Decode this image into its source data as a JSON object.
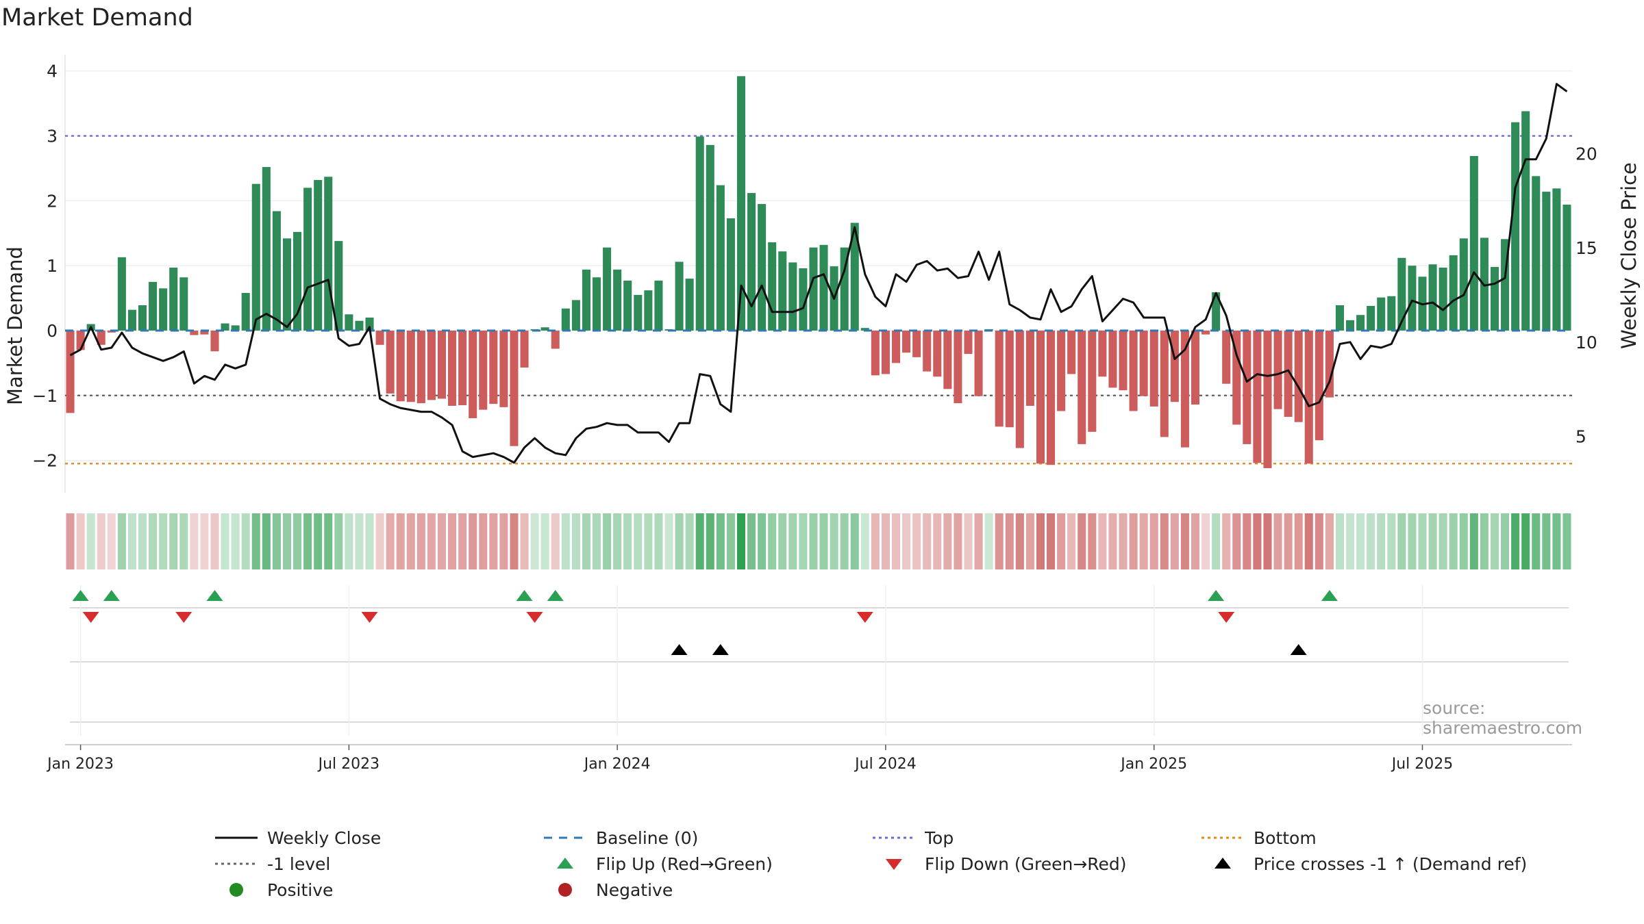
{
  "chart_data": {
    "type": "bar",
    "title": "Market Demand",
    "ylabel_left": "Market Demand",
    "ylabel_right": "Weekly Close Price",
    "source": "source: sharemaestro.com",
    "ylim_left": [
      -2.5,
      4.25
    ],
    "ylim_right": [
      2.0,
      25.25
    ],
    "left_ticks": [
      "−2",
      "−1",
      "0",
      "1",
      "2",
      "3",
      "4"
    ],
    "left_tick_values": [
      -2,
      -1,
      0,
      1,
      2,
      3,
      4
    ],
    "right_ticks": [
      "5",
      "10",
      "15",
      "20"
    ],
    "right_tick_values": [
      5,
      10,
      15,
      20
    ],
    "x_start": "2022-12-26",
    "x_ticks": [
      {
        "label": "Jan 2023",
        "week": 1
      },
      {
        "label": "Jul 2023",
        "week": 27
      },
      {
        "label": "Jan 2024",
        "week": 53
      },
      {
        "label": "Jul 2024",
        "week": 79
      },
      {
        "label": "Jan 2025",
        "week": 105
      },
      {
        "label": "Jul 2025",
        "week": 131
      }
    ],
    "reference_lines": [
      {
        "name": "Top",
        "value": 3,
        "color": "#6b6bd6",
        "dash": "4,5"
      },
      {
        "name": "-1 level",
        "value": -1,
        "color": "#666666",
        "dash": "4,5"
      },
      {
        "name": "Bottom",
        "value": -2.05,
        "color": "#e08a1e",
        "dash": "4,5"
      }
    ],
    "demand": [
      -1.27,
      -0.3,
      0.1,
      -0.22,
      -0.03,
      1.13,
      0.32,
      0.39,
      0.75,
      0.65,
      0.97,
      0.82,
      -0.07,
      -0.06,
      -0.32,
      0.11,
      0.08,
      0.58,
      2.26,
      2.52,
      1.84,
      1.42,
      1.52,
      2.2,
      2.32,
      2.37,
      1.38,
      0.25,
      0.15,
      0.2,
      -0.22,
      -0.97,
      -1.09,
      -1.1,
      -1.12,
      -1.07,
      -1.05,
      -1.16,
      -1.15,
      -1.35,
      -1.22,
      -1.13,
      -1.18,
      -1.78,
      -0.57,
      0.02,
      0.05,
      -0.28,
      0.34,
      0.47,
      0.94,
      0.82,
      1.28,
      0.94,
      0.77,
      0.55,
      0.62,
      0.77,
      0.02,
      1.06,
      0.8,
      2.99,
      2.86,
      2.24,
      1.73,
      3.92,
      2.12,
      1.95,
      1.36,
      1.22,
      1.05,
      0.96,
      1.28,
      1.32,
      0.99,
      1.28,
      1.66,
      0.04,
      -0.69,
      -0.67,
      -0.5,
      -0.34,
      -0.41,
      -0.63,
      -0.71,
      -0.9,
      -1.12,
      -0.36,
      -1.01,
      0.02,
      -1.48,
      -1.49,
      -1.81,
      -1.16,
      -2.05,
      -2.07,
      -1.24,
      -0.67,
      -1.75,
      -1.56,
      -0.71,
      -0.88,
      -0.92,
      -1.24,
      -1.01,
      -1.17,
      -1.64,
      -1.1,
      -1.8,
      -1.14,
      -0.06,
      0.59,
      -0.82,
      -1.45,
      -1.75,
      -2.04,
      -2.12,
      -1.21,
      -1.33,
      -1.41,
      -2.05,
      -1.69,
      -1.03,
      0.39,
      0.16,
      0.24,
      0.38,
      0.51,
      0.53,
      1.12,
      1.0,
      0.83,
      1.02,
      0.97,
      1.16,
      1.42,
      2.69,
      1.43,
      0.98,
      1.41,
      3.21,
      3.38,
      2.38,
      2.14,
      2.19,
      1.94
    ],
    "close": [
      9.3,
      9.6,
      10.8,
      9.6,
      9.7,
      10.5,
      9.7,
      9.4,
      9.2,
      9.0,
      9.2,
      9.5,
      7.8,
      8.2,
      8.0,
      8.8,
      8.6,
      8.8,
      11.2,
      11.5,
      11.2,
      10.8,
      11.5,
      12.9,
      13.1,
      13.3,
      10.2,
      9.8,
      9.9,
      10.8,
      7.0,
      6.7,
      6.5,
      6.4,
      6.3,
      6.3,
      6.0,
      5.6,
      4.2,
      3.9,
      4.0,
      4.1,
      3.9,
      3.6,
      4.4,
      4.9,
      4.4,
      4.1,
      4.0,
      4.9,
      5.4,
      5.5,
      5.7,
      5.6,
      5.6,
      5.2,
      5.2,
      5.2,
      4.7,
      5.7,
      5.7,
      8.3,
      8.2,
      6.7,
      6.3,
      13.0,
      11.9,
      13.0,
      11.6,
      11.6,
      11.6,
      11.8,
      13.4,
      13.6,
      12.3,
      13.8,
      16.1,
      13.6,
      12.4,
      11.9,
      13.6,
      13.2,
      14.1,
      14.3,
      13.8,
      13.9,
      13.4,
      13.5,
      14.8,
      13.3,
      14.8,
      12.0,
      11.7,
      11.3,
      11.2,
      12.8,
      11.6,
      11.9,
      12.8,
      13.5,
      11.1,
      11.7,
      12.3,
      12.1,
      11.3,
      11.3,
      11.3,
      9.1,
      9.6,
      10.8,
      11.2,
      12.6,
      11.4,
      9.3,
      7.9,
      8.3,
      8.2,
      8.3,
      8.5,
      7.6,
      6.6,
      6.8,
      7.9,
      9.9,
      10.0,
      9.1,
      9.8,
      9.7,
      9.9,
      11.1,
      12.2,
      12.0,
      12.1,
      11.7,
      12.2,
      12.5,
      13.7,
      13.0,
      13.1,
      13.4,
      18.2,
      19.7,
      19.7,
      20.8,
      23.7,
      23.3
    ],
    "flip_up_weeks": [
      1,
      4,
      14,
      44,
      47,
      111,
      122
    ],
    "flip_down_weeks": [
      2,
      11,
      29,
      45,
      77,
      112
    ],
    "price_cross_weeks": [
      59,
      63,
      119
    ],
    "colors": {
      "positive_bar": "#2e8b57",
      "negative_bar": "#cd5c5c",
      "close_line": "#111111",
      "baseline": "#2e79b5",
      "flip_up": "#2aa052",
      "flip_down": "#d62c2c",
      "cross": "#000000",
      "positive_dot": "#228b22",
      "negative_dot": "#b22222"
    }
  },
  "legend": [
    {
      "key": "close",
      "label": "Weekly Close"
    },
    {
      "key": "baseline",
      "label": "Baseline (0)"
    },
    {
      "key": "top",
      "label": "Top"
    },
    {
      "key": "bottom",
      "label": "Bottom"
    },
    {
      "key": "minus1",
      "label": "-1 level"
    },
    {
      "key": "flipup",
      "label": "Flip Up (Red→Green)"
    },
    {
      "key": "flipdown",
      "label": "Flip Down (Green→Red)"
    },
    {
      "key": "cross",
      "label": "Price crosses -1 ↑ (Demand ref)"
    },
    {
      "key": "pos",
      "label": "Positive"
    },
    {
      "key": "neg",
      "label": "Negative"
    }
  ]
}
